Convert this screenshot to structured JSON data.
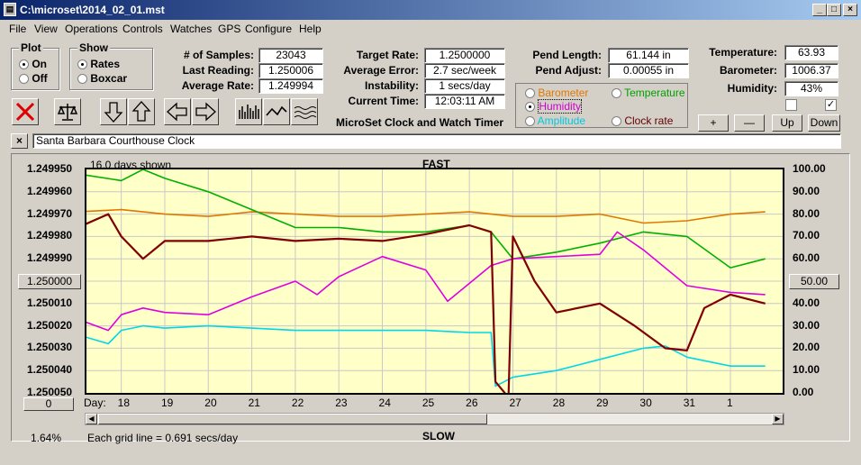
{
  "window": {
    "title": "C:\\microset\\2014_02_01.mst"
  },
  "menu": [
    "File",
    "View",
    "Operations",
    "Controls",
    "Watches",
    "GPS",
    "Configure",
    "Help"
  ],
  "plot_group": {
    "title": "Plot",
    "on": "On",
    "off": "Off"
  },
  "show_group": {
    "title": "Show",
    "rates": "Rates",
    "boxcar": "Boxcar"
  },
  "stats": {
    "samples_label": "# of Samples:",
    "samples": "23043",
    "last_label": "Last Reading:",
    "last": "1.250006",
    "avg_label": "Average Rate:",
    "avg": "1.249994",
    "target_label": "Target Rate:",
    "target": "1.2500000",
    "avgerr_label": "Average Error:",
    "avgerr": "2.7 sec/week",
    "instab_label": "Instability:",
    "instab": "1 secs/day",
    "time_label": "Current Time:",
    "time": "12:03:11 AM",
    "pendlen_label": "Pend Length:",
    "pendlen": "61.144 in",
    "pendadj_label": "Pend Adjust:",
    "pendadj": "0.00055 in",
    "temp_label": "Temperature:",
    "temp": "63.93",
    "baro_label": "Barometer:",
    "baro": "1006.37",
    "hum_label": "Humidity:",
    "hum": "43%"
  },
  "timer_title": "MicroSet Clock and Watch Timer",
  "sensor_options": {
    "barometer": "Barometer",
    "temperature": "Temperature",
    "humidity": "Humidity",
    "amplitude": "Amplitude",
    "clock_rate": "Clock rate"
  },
  "adjust_buttons": {
    "plus": "+",
    "minus": "—",
    "up": "Up",
    "down": "Down"
  },
  "clock_name": "Santa Barbara Courthouse Clock",
  "chart": {
    "days_shown": "16.0 days shown",
    "fast": "FAST",
    "slow": "SLOW",
    "day_label": "Day:",
    "grid_note": "Each grid line = 0.691 secs/day",
    "percent": "1.64%",
    "left_box": "1.250000",
    "right_box": "50.00",
    "bottom_box": "0"
  },
  "colors": {
    "barometer": "#e07800",
    "temperature": "#00b000",
    "humidity": "#e000e0",
    "amplitude": "#00d8e8",
    "clock_rate": "#800000"
  },
  "chart_data": {
    "type": "line",
    "y_left_ticks": [
      "1.249950",
      "1.249960",
      "1.249970",
      "1.249980",
      "1.249990",
      "1.250000",
      "1.250010",
      "1.250020",
      "1.250030",
      "1.250040",
      "1.250050"
    ],
    "y_right_ticks": [
      "100.00",
      "90.00",
      "80.00",
      "70.00",
      "60.00",
      "50.00",
      "40.00",
      "30.00",
      "20.00",
      "10.00",
      "0.00"
    ],
    "x_ticks": [
      "18",
      "19",
      "20",
      "21",
      "22",
      "23",
      "24",
      "25",
      "26",
      "27",
      "28",
      "29",
      "30",
      "31",
      "1"
    ],
    "ylim_left": [
      1.24995,
      1.25005
    ],
    "ylim_right": [
      0,
      100
    ],
    "xlim": [
      17,
      2
    ],
    "series": [
      {
        "name": "Barometer",
        "x": [
          17.0,
          18,
          19,
          20,
          21,
          22,
          23,
          24,
          25,
          26,
          27,
          28,
          29,
          30,
          31,
          32,
          32.8
        ],
        "y": [
          81,
          82,
          80,
          79,
          81,
          80,
          79,
          79,
          80,
          81,
          79,
          79,
          80,
          76,
          77,
          80,
          81
        ]
      },
      {
        "name": "Temperature",
        "x": [
          17.0,
          18,
          18.5,
          19,
          20,
          21,
          22,
          23,
          24,
          25,
          26,
          26.5,
          27,
          28,
          29,
          30,
          31,
          32,
          32.8
        ],
        "y": [
          98,
          95,
          100,
          96,
          90,
          82,
          74,
          74,
          72,
          72,
          75,
          72,
          60,
          63,
          67,
          72,
          70,
          56,
          60
        ]
      },
      {
        "name": "Humidity",
        "x": [
          17.0,
          17.7,
          18,
          18.5,
          19,
          20,
          21,
          22,
          22.5,
          23,
          24,
          25,
          25.5,
          26,
          26.5,
          27,
          28,
          29,
          29.4,
          30,
          31,
          32,
          32.8
        ],
        "y": [
          33,
          28,
          35,
          38,
          36,
          35,
          43,
          50,
          44,
          52,
          61,
          55,
          41,
          49,
          57,
          60,
          61,
          62,
          72,
          64,
          48,
          45,
          44
        ]
      },
      {
        "name": "Amplitude",
        "x": [
          17.0,
          17.7,
          18,
          18.5,
          19,
          20,
          21,
          22,
          23,
          24,
          25,
          26,
          26.5,
          26.6,
          27,
          28,
          29,
          30,
          30.5,
          31,
          32,
          32.8
        ],
        "y": [
          26,
          22,
          28,
          30,
          29,
          30,
          29,
          28,
          28,
          28,
          28,
          27,
          27,
          3,
          7,
          10,
          15,
          20,
          21,
          16,
          12,
          12
        ]
      },
      {
        "name": "Clock rate",
        "x": [
          17.0,
          17.7,
          18,
          18.5,
          19,
          20,
          21,
          22,
          23,
          24,
          25,
          26,
          26.5,
          26.6,
          26.9,
          27,
          27.5,
          28,
          29,
          29.8,
          30.5,
          31,
          31.4,
          32,
          32.8
        ],
        "y": [
          74,
          80,
          70,
          60,
          68,
          68,
          70,
          68,
          69,
          68,
          71,
          75,
          72,
          5,
          -3,
          70,
          50,
          36,
          40,
          30,
          20,
          19,
          38,
          44,
          40
        ]
      }
    ]
  }
}
